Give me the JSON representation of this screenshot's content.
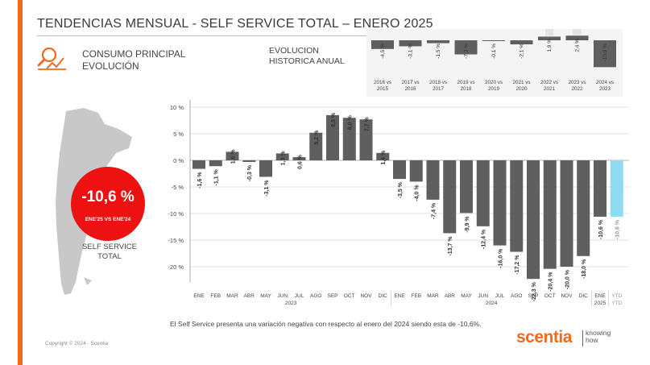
{
  "header": {
    "title": "TENDENCIAS MENSUAL - SELF SERVICE TOTAL –   ENERO 2025"
  },
  "section": {
    "line1": "CONSUMO PRINCIPAL",
    "line2": "EVOLUCIÓN",
    "icon": "magnifier-trend-icon"
  },
  "historic": {
    "title_line1": "EVOLUCION",
    "title_line2": "HISTORICA ANUAL"
  },
  "badge": {
    "value": "-10,6 %",
    "sub": "ENE'25 VS ENE'24"
  },
  "store": {
    "line1": "SELF SERVICE",
    "line2": "TOTAL"
  },
  "note": "El Self Service presenta una variación negativa con respecto al enero del 2024 siendo esta de -10,6%.",
  "copyright": "Copyright © 2024 - Scentia",
  "brand": {
    "name": "scentia",
    "tag_line1": "knowing",
    "tag_line2": "how"
  },
  "colors": {
    "accent": "#f26a1b",
    "bar": "#5f5f5f",
    "ytd_bar": "#8fdcf0",
    "badge": "#ee1111",
    "map": "#c8c8c8"
  },
  "chart_data": [
    {
      "type": "bar",
      "title": "EVOLUCION HISTORICA ANUAL",
      "categories": [
        [
          "2016 vs",
          "2015"
        ],
        [
          "2017 vs",
          "2016"
        ],
        [
          "2018 vs",
          "2017"
        ],
        [
          "2019 vs",
          "2018"
        ],
        [
          "2020 vs",
          "2019"
        ],
        [
          "2021 vs",
          "2020"
        ],
        [
          "2022 vs",
          "2021"
        ],
        [
          "2023 vs",
          "2022"
        ],
        [
          "2024 vs",
          "2023"
        ]
      ],
      "values": [
        -4.5,
        -3.1,
        -1.5,
        -7.3,
        -0.1,
        -2.1,
        1.9,
        2.4,
        -13.9
      ],
      "labels": [
        "-4,5 %",
        "-3,1 %",
        "-1,5 %",
        "-7,3 %",
        "-0,1 %",
        "-2,1 %",
        "1,9 %",
        "2,4 %",
        "-13,9 %"
      ]
    },
    {
      "type": "bar",
      "title": "",
      "ylim": [
        -25,
        10
      ],
      "yticks": [
        10,
        5,
        0,
        -5,
        -10,
        -15,
        -20
      ],
      "ytick_labels": [
        "10 %",
        "5 %",
        "0 %",
        "-5 %",
        "-10 %",
        "-15 %",
        "-20 %"
      ],
      "categories": [
        "ENE",
        "FEB",
        "MAR",
        "ABR",
        "MAY",
        "JUN",
        "JUL",
        "AGO",
        "SEP",
        "OCT",
        "NOV",
        "DIC",
        "ENE",
        "FEB",
        "MAR",
        "ABR",
        "MAY",
        "JUN",
        "JUL",
        "AGO",
        "SEP",
        "OCT",
        "NOV",
        "DIC",
        "ENE",
        "YTD"
      ],
      "values": [
        -1.6,
        -1.1,
        1.6,
        -0.3,
        -3.1,
        1.3,
        0.6,
        5.2,
        8.5,
        8.0,
        7.7,
        1.4,
        -3.5,
        -4.0,
        -7.4,
        -13.7,
        -9.9,
        -12.4,
        -16.0,
        -17.2,
        -22.3,
        -20.4,
        -20.0,
        -18.0,
        -10.6,
        -10.6
      ],
      "labels": [
        "-1,6 %",
        "-1,1 %",
        "1,6 %",
        "-0,3 %",
        "-3,1 %",
        "1,3 %",
        "0,6 %",
        "5,2 %",
        "8,5 %",
        "8,0 %",
        "7,7 %",
        "1,4 %",
        "-3,5 %",
        "-4,0 %",
        "-7,4 %",
        "-13,7 %",
        "-9,9 %",
        "-12,4 %",
        "-16,0 %",
        "-17,2 %",
        "-22,3 %",
        "-20,4 %",
        "-20,0 %",
        "-18,0 %",
        "-10,6 %",
        "-10,6 %"
      ],
      "group_labels": [
        {
          "label": "2023",
          "from": 0,
          "to": 11
        },
        {
          "label": "2024",
          "from": 12,
          "to": 23
        },
        {
          "label": "2025",
          "from": 24,
          "to": 24
        },
        {
          "label": "YTD",
          "from": 25,
          "to": 25
        }
      ]
    }
  ]
}
